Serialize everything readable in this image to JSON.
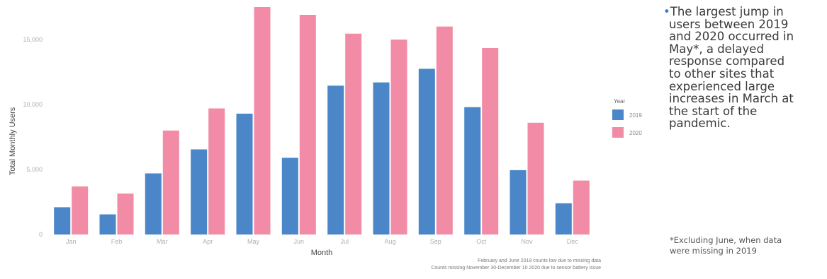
{
  "chart_data": {
    "type": "bar",
    "title": "",
    "xlabel": "Month",
    "ylabel": "Total Monthly Users",
    "categories": [
      "Jan",
      "Feb",
      "Mar",
      "Apr",
      "May",
      "Jun",
      "Jul",
      "Aug",
      "Sep",
      "Oct",
      "Nov",
      "Dec"
    ],
    "yticks": [
      0,
      5000,
      10000,
      15000
    ],
    "ytick_labels": [
      "0",
      "5,000",
      "10,000",
      "15,000"
    ],
    "ylim": [
      0,
      17500
    ],
    "legend_title": "Year",
    "legend_position": "right",
    "series": [
      {
        "name": "2019",
        "color": "#4a86c8",
        "values": [
          2100,
          1550,
          4700,
          6550,
          9300,
          5900,
          11450,
          11700,
          12750,
          9800,
          4950,
          2400
        ]
      },
      {
        "name": "2020",
        "color": "#f28ba6",
        "values": [
          3700,
          3150,
          8000,
          9700,
          17500,
          16900,
          15450,
          15000,
          16000,
          14350,
          8600,
          4150
        ]
      }
    ],
    "grid": false,
    "notes": [
      "February and June 2019 counts low due to missing data",
      "Counts missing November 30-December 10 2020 due to sensor battery issue"
    ]
  },
  "commentary": {
    "bullet_lines": [
      "The largest jump in",
      "users between 2019",
      "and 2020 occurred in",
      "May*, a delayed",
      "response compared",
      "to other sites that",
      "experienced large",
      "increases in March at",
      "the start of the",
      "pandemic."
    ],
    "footnote_lines": [
      "*Excluding June, when data",
      "were missing in 2019"
    ]
  }
}
